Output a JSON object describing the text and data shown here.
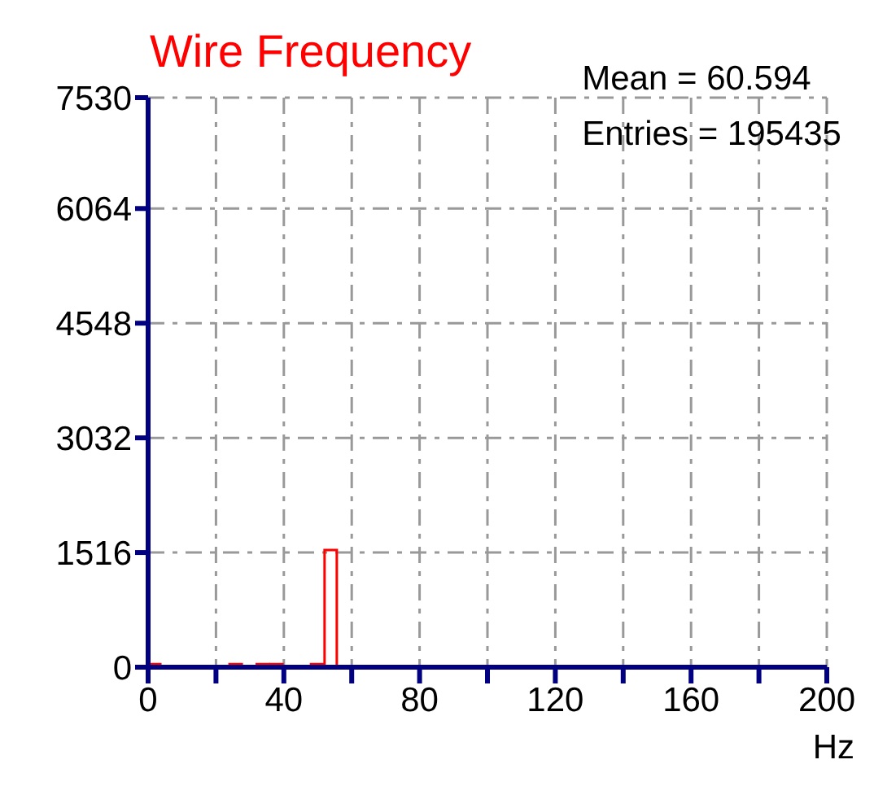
{
  "chart_data": {
    "type": "histogram",
    "title": "Wire Frequency",
    "xlabel": "Hz",
    "annotations": [
      "Mean = 60.594",
      "Entries = 195435"
    ],
    "bins": [
      0,
      4,
      8,
      12,
      16,
      20,
      24,
      28,
      32,
      36,
      40,
      44,
      48,
      52,
      56,
      60,
      64,
      68,
      72,
      76,
      80,
      84,
      88,
      92,
      96,
      100,
      104,
      108,
      112,
      116,
      120,
      124,
      128,
      132,
      136,
      140,
      144,
      148,
      152,
      156,
      160,
      164,
      168,
      172,
      176,
      180,
      184,
      188,
      192,
      196,
      200
    ],
    "values": [
      40,
      0,
      0,
      0,
      0,
      0,
      40,
      0,
      40,
      40,
      0,
      0,
      40,
      1550,
      null,
      0,
      0,
      0,
      0,
      0,
      0,
      0,
      0,
      0,
      0,
      0,
      0,
      0,
      0,
      0,
      0,
      0,
      0,
      0,
      0,
      0,
      0,
      0,
      0,
      0,
      0,
      0,
      0,
      0,
      0,
      0,
      0,
      0,
      0,
      0
    ],
    "color": "#ff0000",
    "xlim": [
      0,
      200
    ],
    "xticks": [
      0,
      {
        "value": 20,
        "label": null
      },
      40,
      {
        "value": 60,
        "label": null
      },
      80,
      {
        "value": 100,
        "label": null
      },
      120,
      {
        "value": 140,
        "label": null
      },
      160,
      {
        "value": 180,
        "label": null
      },
      200
    ],
    "ylim": [
      0,
      7530
    ],
    "yticks": [
      0,
      1516,
      3032,
      4548,
      6064,
      7530
    ],
    "grid": true,
    "legend": false
  }
}
